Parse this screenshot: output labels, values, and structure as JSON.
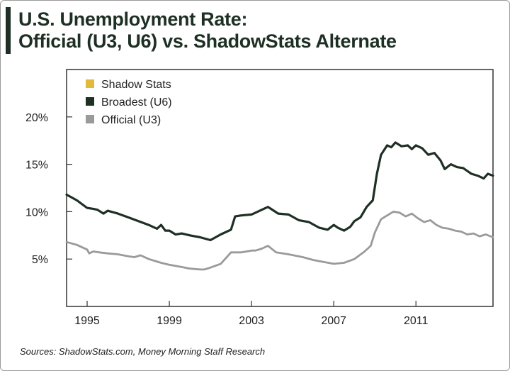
{
  "title": {
    "line1": "U.S. Unemployment Rate:",
    "line2": "Official (U3, U6) vs. ShadowStats Alternate"
  },
  "source": "Sources: ShadowStats.com, Money Morning Staff Research",
  "colors": {
    "shadow_stats": "#e2b93b",
    "broadest_u6": "#1e2f24",
    "official_u3": "#9a9a9a",
    "title": "#1e2f24"
  },
  "chart_data": {
    "type": "line",
    "title": "U.S. Unemployment Rate: Official (U3, U6) vs. ShadowStats Alternate",
    "xlabel": "",
    "ylabel": "",
    "xlim": [
      1994.0,
      2014.75
    ],
    "ylim": [
      0,
      25
    ],
    "x_ticks": [
      1995,
      1999,
      2003,
      2007,
      2011
    ],
    "x_tick_labels": [
      "1995",
      "1999",
      "2003",
      "2007",
      "2011"
    ],
    "y_ticks": [
      5,
      10,
      15,
      20
    ],
    "y_tick_labels": [
      "5%",
      "10%",
      "15%",
      "20%"
    ],
    "grid": false,
    "legend_position": "top-left",
    "series": [
      {
        "name": "Shadow Stats",
        "color": "#e2b93b",
        "x": [],
        "y": []
      },
      {
        "name": "Broadest (U6)",
        "color": "#1e2f24",
        "x": [
          1994.0,
          1994.5,
          1995.0,
          1995.3,
          1995.5,
          1995.8,
          1996.0,
          1996.5,
          1997.0,
          1997.5,
          1998.0,
          1998.2,
          1998.4,
          1998.6,
          1998.8,
          1999.0,
          1999.3,
          1999.6,
          2000.0,
          2000.5,
          2001.0,
          2001.5,
          2002.0,
          2002.2,
          2002.5,
          2003.0,
          2003.4,
          2003.8,
          2004.3,
          2004.8,
          2005.3,
          2005.8,
          2006.3,
          2006.7,
          2007.0,
          2007.2,
          2007.5,
          2007.8,
          2008.0,
          2008.3,
          2008.6,
          2008.9,
          2009.1,
          2009.3,
          2009.6,
          2009.8,
          2010.0,
          2010.3,
          2010.6,
          2010.8,
          2011.0,
          2011.3,
          2011.6,
          2011.9,
          2012.2,
          2012.4,
          2012.7,
          2013.0,
          2013.3,
          2013.5,
          2013.7,
          2014.0,
          2014.3,
          2014.5,
          2014.75
        ],
        "y": [
          11.8,
          11.2,
          10.4,
          10.3,
          10.2,
          9.8,
          10.1,
          9.8,
          9.4,
          9.0,
          8.6,
          8.4,
          8.2,
          8.6,
          8.0,
          8.0,
          7.6,
          7.7,
          7.5,
          7.3,
          7.0,
          7.6,
          8.1,
          9.5,
          9.6,
          9.7,
          10.1,
          10.5,
          9.8,
          9.7,
          9.1,
          8.9,
          8.3,
          8.1,
          8.6,
          8.3,
          8.0,
          8.4,
          9.0,
          9.4,
          10.5,
          11.2,
          14.0,
          16.0,
          17.0,
          16.8,
          17.3,
          16.9,
          17.0,
          16.6,
          17.0,
          16.7,
          16.0,
          16.2,
          15.4,
          14.5,
          15.0,
          14.7,
          14.6,
          14.3,
          14.0,
          13.8,
          13.5,
          14.0,
          13.8
        ]
      },
      {
        "name": "Official (U3)",
        "color": "#9a9a9a",
        "x": [
          1994.0,
          1994.5,
          1995.0,
          1995.1,
          1995.3,
          1995.6,
          1996.0,
          1996.5,
          1997.0,
          1997.3,
          1997.6,
          1998.0,
          1998.3,
          1998.6,
          1999.0,
          1999.5,
          2000.0,
          2000.5,
          2000.7,
          2001.0,
          2001.5,
          2002.0,
          2002.5,
          2003.0,
          2003.2,
          2003.5,
          2003.8,
          2004.2,
          2004.8,
          2005.5,
          2006.0,
          2006.5,
          2007.0,
          2007.5,
          2008.0,
          2008.5,
          2008.8,
          2009.0,
          2009.3,
          2009.6,
          2009.9,
          2010.2,
          2010.5,
          2010.8,
          2011.1,
          2011.4,
          2011.7,
          2012.0,
          2012.3,
          2012.6,
          2012.9,
          2013.2,
          2013.5,
          2013.8,
          2014.1,
          2014.4,
          2014.75
        ],
        "y": [
          6.8,
          6.5,
          6.0,
          5.6,
          5.8,
          5.7,
          5.6,
          5.5,
          5.3,
          5.2,
          5.4,
          5.0,
          4.8,
          4.6,
          4.4,
          4.2,
          4.0,
          3.9,
          3.9,
          4.1,
          4.5,
          5.7,
          5.7,
          5.9,
          5.9,
          6.1,
          6.4,
          5.7,
          5.5,
          5.2,
          4.9,
          4.7,
          4.5,
          4.6,
          5.0,
          5.8,
          6.4,
          7.8,
          9.2,
          9.6,
          10.0,
          9.9,
          9.5,
          9.8,
          9.3,
          8.9,
          9.1,
          8.6,
          8.3,
          8.2,
          8.0,
          7.9,
          7.6,
          7.7,
          7.4,
          7.6,
          7.3
        ]
      }
    ]
  }
}
